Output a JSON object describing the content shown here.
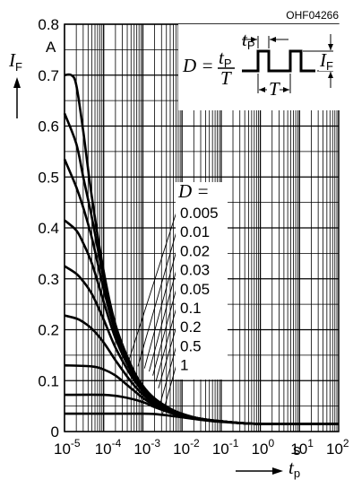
{
  "chart_data": {
    "type": "line",
    "figure_code": "OHF04266",
    "x_scale": "log",
    "xlim": [
      1e-05,
      100
    ],
    "ylim": [
      0,
      0.8
    ],
    "x_ticks": [
      {
        "base": "10",
        "exp": "-5"
      },
      {
        "base": "10",
        "exp": "-4"
      },
      {
        "base": "10",
        "exp": "-3"
      },
      {
        "base": "10",
        "exp": "-2"
      },
      {
        "base": "10",
        "exp": "-1"
      },
      {
        "base": "10",
        "exp": "0"
      },
      {
        "base": "10",
        "exp": "1"
      },
      {
        "base": "10",
        "exp": "2"
      }
    ],
    "y_ticks": [
      "0",
      "0.1",
      "0.2",
      "0.3",
      "0.4",
      "0.5",
      "0.6",
      "0.7",
      "0.8"
    ],
    "y_unit": "A",
    "x_unit": "s",
    "y_label": {
      "main": "I",
      "sub": "F"
    },
    "x_label": {
      "main": "t",
      "sub": "p"
    },
    "legend_title": "D =",
    "inset": {
      "formula_lhs": "D =",
      "num_main": "t",
      "num_sub": "P",
      "den": "T",
      "tp_main": "t",
      "tp_sub": "P",
      "T_label": "T",
      "IF_main": "I",
      "IF_sub": "F"
    },
    "grid": true,
    "series": [
      {
        "name": "0.005",
        "points": [
          [
            1e-05,
            0.7
          ],
          [
            1.5e-05,
            0.7
          ],
          [
            2e-05,
            0.68
          ],
          [
            3e-05,
            0.59
          ],
          [
            5e-05,
            0.46
          ],
          [
            0.0001,
            0.315
          ],
          [
            0.0002,
            0.21
          ],
          [
            0.0005,
            0.13
          ],
          [
            0.001,
            0.09
          ],
          [
            0.002,
            0.065
          ],
          [
            0.005,
            0.045
          ],
          [
            0.01,
            0.035
          ],
          [
            0.03,
            0.025
          ],
          [
            0.1,
            0.02
          ],
          [
            1,
            0.015
          ],
          [
            100,
            0.015
          ]
        ]
      },
      {
        "name": "0.01",
        "points": [
          [
            1e-05,
            0.625
          ],
          [
            2e-05,
            0.565
          ],
          [
            3e-05,
            0.5
          ],
          [
            5e-05,
            0.42
          ],
          [
            0.0001,
            0.3
          ],
          [
            0.0002,
            0.205
          ],
          [
            0.0005,
            0.128
          ],
          [
            0.001,
            0.088
          ],
          [
            0.002,
            0.064
          ],
          [
            0.005,
            0.044
          ],
          [
            0.01,
            0.034
          ],
          [
            0.03,
            0.025
          ],
          [
            0.1,
            0.02
          ],
          [
            1,
            0.015
          ],
          [
            100,
            0.015
          ]
        ]
      },
      {
        "name": "0.02",
        "points": [
          [
            1e-05,
            0.535
          ],
          [
            2e-05,
            0.48
          ],
          [
            3e-05,
            0.44
          ],
          [
            5e-05,
            0.38
          ],
          [
            0.0001,
            0.28
          ],
          [
            0.0002,
            0.195
          ],
          [
            0.0005,
            0.124
          ],
          [
            0.001,
            0.086
          ],
          [
            0.002,
            0.062
          ],
          [
            0.005,
            0.043
          ],
          [
            0.01,
            0.034
          ],
          [
            0.03,
            0.025
          ],
          [
            0.1,
            0.02
          ],
          [
            1,
            0.015
          ],
          [
            100,
            0.015
          ]
        ]
      },
      {
        "name": "0.03",
        "points": [
          [
            1e-05,
            0.415
          ],
          [
            2e-05,
            0.395
          ],
          [
            3e-05,
            0.37
          ],
          [
            5e-05,
            0.33
          ],
          [
            0.0001,
            0.255
          ],
          [
            0.0002,
            0.183
          ],
          [
            0.0005,
            0.118
          ],
          [
            0.001,
            0.083
          ],
          [
            0.002,
            0.06
          ],
          [
            0.005,
            0.042
          ],
          [
            0.01,
            0.033
          ],
          [
            0.03,
            0.025
          ],
          [
            0.1,
            0.02
          ],
          [
            1,
            0.015
          ],
          [
            100,
            0.015
          ]
        ]
      },
      {
        "name": "0.05",
        "points": [
          [
            1e-05,
            0.325
          ],
          [
            2e-05,
            0.31
          ],
          [
            3e-05,
            0.295
          ],
          [
            5e-05,
            0.27
          ],
          [
            0.0001,
            0.22
          ],
          [
            0.0002,
            0.165
          ],
          [
            0.0005,
            0.11
          ],
          [
            0.001,
            0.079
          ],
          [
            0.002,
            0.058
          ],
          [
            0.005,
            0.041
          ],
          [
            0.01,
            0.033
          ],
          [
            0.03,
            0.025
          ],
          [
            0.1,
            0.02
          ],
          [
            1,
            0.015
          ],
          [
            100,
            0.015
          ]
        ]
      },
      {
        "name": "0.1",
        "points": [
          [
            1e-05,
            0.228
          ],
          [
            2e-05,
            0.222
          ],
          [
            3e-05,
            0.215
          ],
          [
            5e-05,
            0.202
          ],
          [
            0.0001,
            0.175
          ],
          [
            0.0002,
            0.14
          ],
          [
            0.0005,
            0.098
          ],
          [
            0.001,
            0.073
          ],
          [
            0.002,
            0.055
          ],
          [
            0.005,
            0.04
          ],
          [
            0.01,
            0.032
          ],
          [
            0.03,
            0.025
          ],
          [
            0.1,
            0.02
          ],
          [
            1,
            0.015
          ],
          [
            100,
            0.015
          ]
        ]
      },
      {
        "name": "0.2",
        "points": [
          [
            1e-05,
            0.13
          ],
          [
            5e-05,
            0.128
          ],
          [
            0.0001,
            0.122
          ],
          [
            0.0002,
            0.11
          ],
          [
            0.0005,
            0.085
          ],
          [
            0.001,
            0.066
          ],
          [
            0.002,
            0.052
          ],
          [
            0.005,
            0.039
          ],
          [
            0.01,
            0.031
          ],
          [
            0.03,
            0.025
          ],
          [
            0.1,
            0.02
          ],
          [
            1,
            0.015
          ],
          [
            100,
            0.015
          ]
        ]
      },
      {
        "name": "0.5",
        "points": [
          [
            1e-05,
            0.072
          ],
          [
            0.0001,
            0.072
          ],
          [
            0.0003,
            0.068
          ],
          [
            0.001,
            0.058
          ],
          [
            0.002,
            0.048
          ],
          [
            0.005,
            0.037
          ],
          [
            0.01,
            0.03
          ],
          [
            0.03,
            0.024
          ],
          [
            0.1,
            0.02
          ],
          [
            1,
            0.015
          ],
          [
            100,
            0.015
          ]
        ]
      },
      {
        "name": "1",
        "points": [
          [
            1e-05,
            0.035
          ],
          [
            0.001,
            0.035
          ],
          [
            0.003,
            0.033
          ],
          [
            0.01,
            0.028
          ],
          [
            0.03,
            0.023
          ],
          [
            0.1,
            0.019
          ],
          [
            1,
            0.015
          ],
          [
            100,
            0.015
          ]
        ]
      }
    ]
  }
}
